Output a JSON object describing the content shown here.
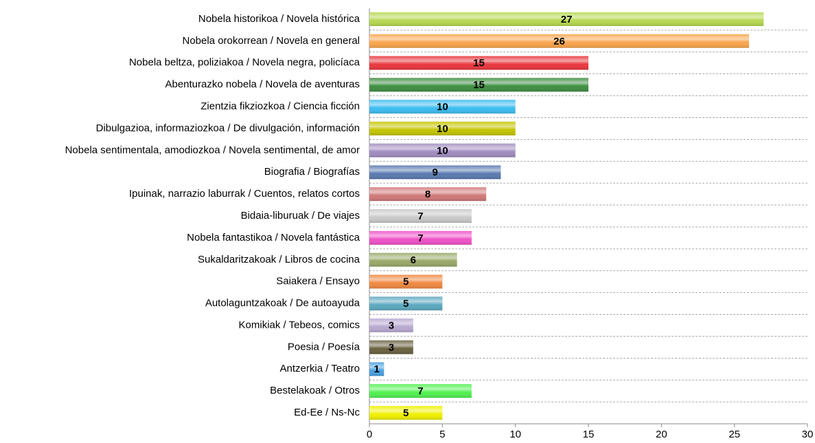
{
  "chart_data": {
    "type": "barh",
    "categories": [
      "Nobela historikoa / Novela histórica",
      "Nobela orokorrean / Novela en general",
      "Nobela beltza, poliziakoa / Novela negra, policíaca",
      "Abenturazko nobela / Novela de aventuras",
      "Zientzia fikziozkoa / Ciencia ficción",
      "Dibulgazioa, informaziozkoa / De divulgación, información",
      "Nobela sentimentala, amodiozkoa / Novela sentimental, de amor",
      "Biografia / Biografías",
      "Ipuinak, narrazio laburrak / Cuentos, relatos cortos",
      "Bidaia-liburuak / De viajes",
      "Nobela fantastikoa / Novela fantástica",
      "Sukaldaritzakoak / Libros de cocina",
      "Saiakera / Ensayo",
      "Autolaguntzakoak / De autoayuda",
      "Komikiak / Tebeos, comics",
      "Poesia / Poesía",
      "Antzerkia / Teatro",
      "Bestelakoak / Otros",
      "Ed-Ee / Ns-Nc"
    ],
    "values": [
      27,
      26,
      15,
      15,
      10,
      10,
      10,
      9,
      8,
      7,
      7,
      6,
      5,
      5,
      3,
      3,
      1,
      7,
      5
    ],
    "colors": [
      "#b5d84f",
      "#f9a54c",
      "#e8373c",
      "#3e8e41",
      "#3bbcf0",
      "#c4c400",
      "#a08cc0",
      "#5a7ab0",
      "#d07878",
      "#c8c8c8",
      "#f050c8",
      "#98a868",
      "#f08840",
      "#5ba8c0",
      "#b8a8d0",
      "#6a6040",
      "#4aa0e0",
      "#50f050",
      "#f0f000"
    ],
    "xlim": [
      0,
      30
    ],
    "xticks": [
      0,
      5,
      10,
      15,
      20,
      25,
      30
    ]
  }
}
